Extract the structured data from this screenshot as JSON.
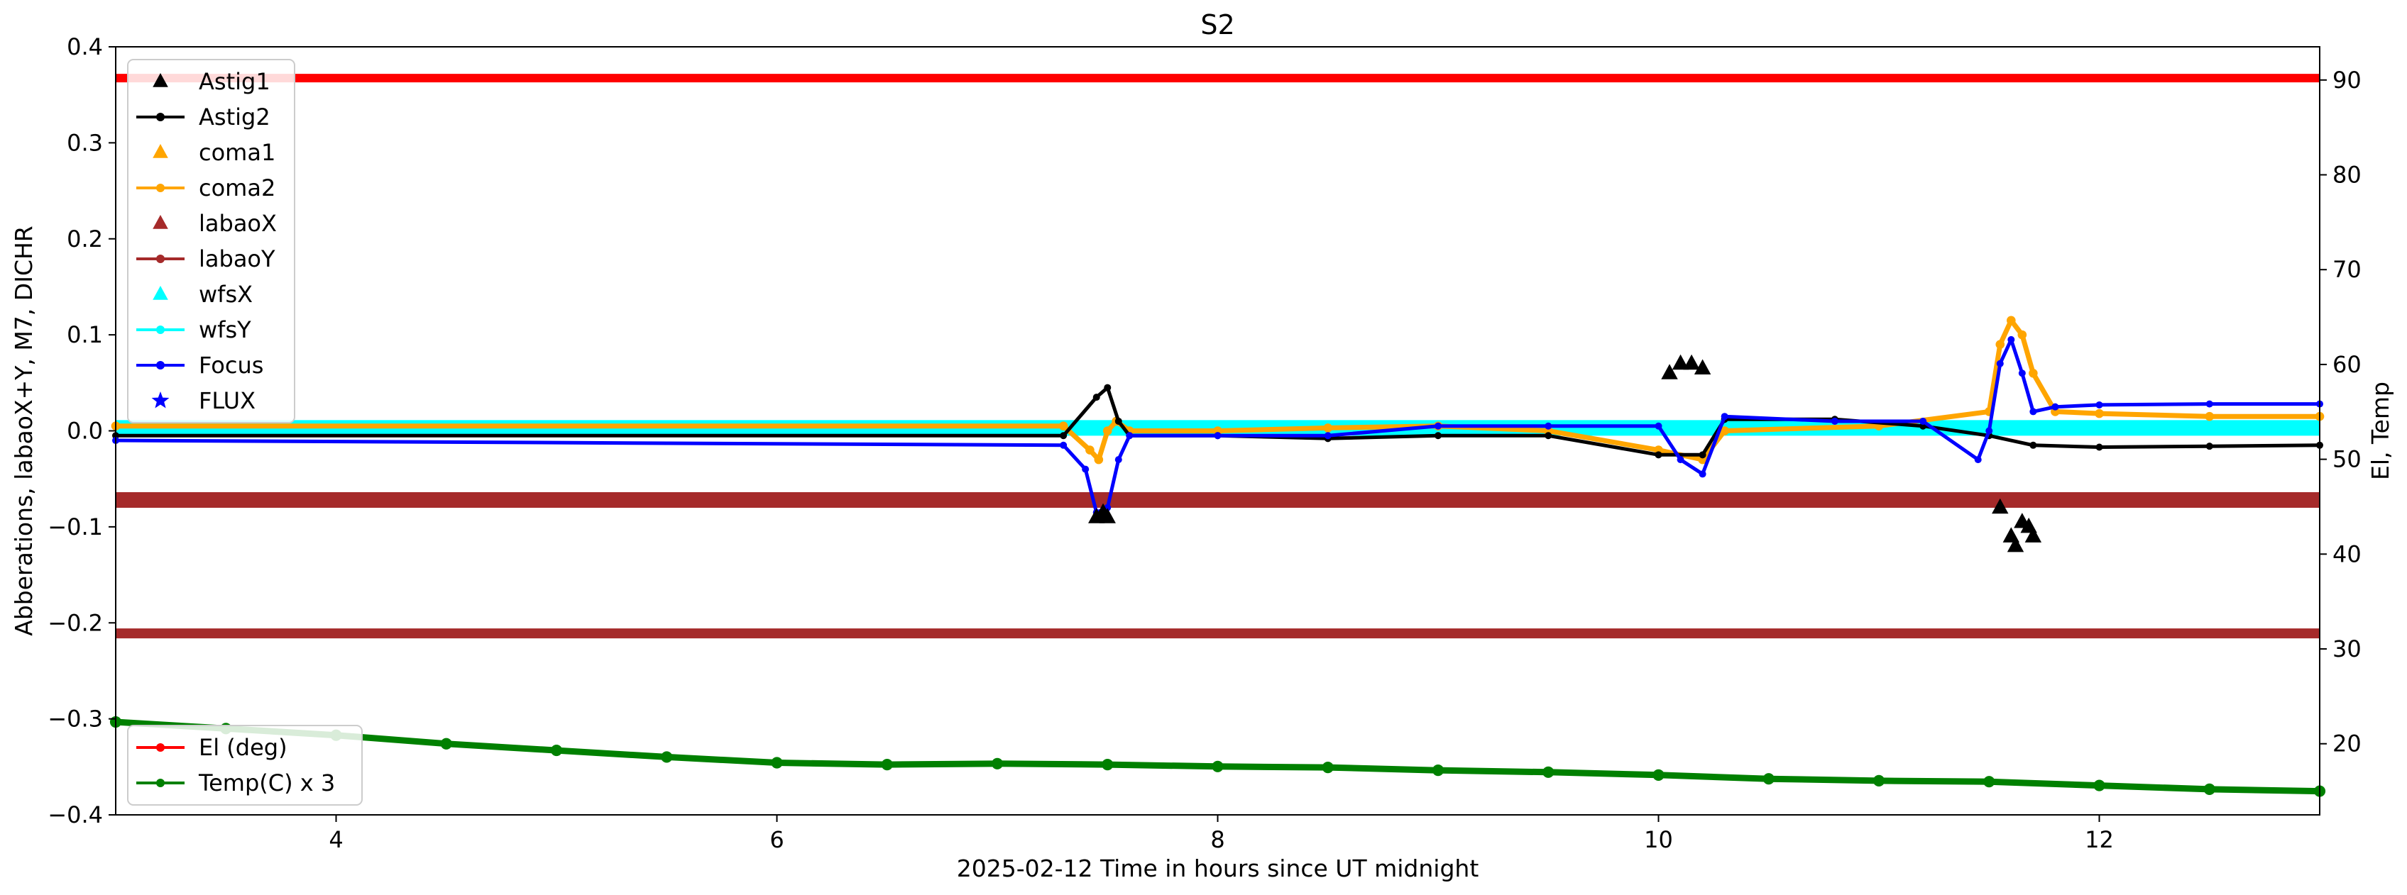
{
  "chart_data": {
    "type": "line",
    "title": "S2",
    "xlabel": "2025-02-12  Time in hours since UT midnight",
    "ylabel": "Abberations, labaoX+Y, M7, DICHR",
    "ylabel_right": "El, Temp",
    "xlim": [
      3,
      13
    ],
    "ylim": [
      -0.4,
      0.4
    ],
    "ylim_right": [
      12.5,
      93.5
    ],
    "x_ticks": [
      4,
      6,
      8,
      10,
      12
    ],
    "y_ticks": [
      -0.4,
      -0.3,
      -0.2,
      -0.1,
      0.0,
      0.1,
      0.2,
      0.3,
      0.4
    ],
    "y_tick_labels": [
      "−0.4",
      "−0.3",
      "−0.2",
      "−0.1",
      "0.0",
      "0.1",
      "0.2",
      "0.3",
      "0.4"
    ],
    "y_ticks_right": [
      20,
      30,
      40,
      50,
      60,
      70,
      80,
      90
    ],
    "grid": false,
    "legend_left_placement": "upper-left",
    "legend_right_placement": "lower-left",
    "legend_left": [
      {
        "name": "Astig1",
        "marker": "triangle",
        "line": false,
        "color": "#000000"
      },
      {
        "name": "Astig2",
        "marker": "dot",
        "line": true,
        "color": "#000000"
      },
      {
        "name": "coma1",
        "marker": "triangle",
        "line": false,
        "color": "#ffa500"
      },
      {
        "name": "coma2",
        "marker": "dot",
        "line": true,
        "color": "#ffa500"
      },
      {
        "name": "labaoX",
        "marker": "triangle",
        "line": false,
        "color": "#a52a2a"
      },
      {
        "name": "labaoY",
        "marker": "dot",
        "line": true,
        "color": "#a52a2a"
      },
      {
        "name": "wfsX",
        "marker": "triangle",
        "line": false,
        "color": "#00ffff"
      },
      {
        "name": "wfsY",
        "marker": "dot",
        "line": true,
        "color": "#00ffff"
      },
      {
        "name": "Focus",
        "marker": "dot",
        "line": true,
        "color": "#0000ff"
      },
      {
        "name": "FLUX",
        "marker": "star",
        "line": false,
        "color": "#0000ff"
      }
    ],
    "legend_right": [
      {
        "name": "El (deg)",
        "marker": "dot",
        "line": true,
        "color": "#ff0000"
      },
      {
        "name": "Temp(C) x 3",
        "marker": "dot",
        "line": true,
        "color": "#008000"
      }
    ],
    "series": [
      {
        "name": "El (deg)",
        "axis": "right",
        "color": "#ff0000",
        "x": [
          3.0,
          13.0
        ],
        "y": [
          90.2,
          90.2
        ]
      },
      {
        "name": "Temp(C) x 3",
        "axis": "right",
        "color": "#008000",
        "x": [
          3.0,
          3.5,
          4.0,
          4.5,
          5.0,
          5.5,
          6.0,
          6.5,
          7.0,
          7.5,
          8.0,
          8.5,
          9.0,
          9.5,
          10.0,
          10.5,
          11.0,
          11.5,
          12.0,
          12.5,
          13.0
        ],
        "y": [
          22.3,
          21.6,
          20.9,
          20.0,
          19.3,
          18.6,
          18.0,
          17.8,
          17.9,
          17.8,
          17.6,
          17.5,
          17.2,
          17.0,
          16.7,
          16.3,
          16.1,
          16.0,
          15.6,
          15.2,
          15.0
        ]
      },
      {
        "name": "labaoX",
        "axis": "left",
        "color": "#a52a2a",
        "x": [
          3.0,
          13.0
        ],
        "y": [
          -0.072,
          -0.072
        ]
      },
      {
        "name": "labaoY",
        "axis": "left",
        "color": "#a52a2a",
        "x": [
          3.0,
          13.0
        ],
        "y": [
          -0.211,
          -0.211
        ]
      },
      {
        "name": "wfsX",
        "axis": "left",
        "color": "#00ffff",
        "x": [
          3.0,
          13.0
        ],
        "y": [
          0.003,
          0.003
        ]
      },
      {
        "name": "wfsY",
        "axis": "left",
        "color": "#00ffff",
        "x": [
          3.0,
          13.0
        ],
        "y": [
          -0.001,
          -0.001
        ]
      },
      {
        "name": "coma2",
        "axis": "left",
        "color": "#ffa500",
        "x": [
          3.0,
          7.3,
          7.42,
          7.46,
          7.5,
          7.54,
          7.6,
          8.0,
          8.5,
          9.0,
          9.5,
          10.0,
          10.2,
          10.3,
          11.0,
          11.5,
          11.55,
          11.6,
          11.65,
          11.7,
          11.8,
          12.0,
          12.5,
          13.0
        ],
        "y": [
          0.005,
          0.005,
          -0.02,
          -0.03,
          0.0,
          0.01,
          0.0,
          0.0,
          0.003,
          0.005,
          0.0,
          -0.02,
          -0.03,
          0.0,
          0.005,
          0.02,
          0.09,
          0.115,
          0.1,
          0.06,
          0.02,
          0.018,
          0.015,
          0.015
        ]
      },
      {
        "name": "Astig2",
        "axis": "left",
        "color": "#000000",
        "x": [
          3.0,
          7.3,
          7.45,
          7.5,
          7.55,
          7.6,
          8.0,
          8.5,
          9.0,
          9.5,
          10.0,
          10.2,
          10.3,
          10.8,
          11.2,
          11.5,
          11.7,
          12.0,
          12.5,
          13.0
        ],
        "y": [
          -0.005,
          -0.005,
          0.035,
          0.045,
          0.01,
          -0.005,
          -0.005,
          -0.008,
          -0.005,
          -0.005,
          -0.025,
          -0.025,
          0.012,
          0.012,
          0.005,
          -0.005,
          -0.015,
          -0.017,
          -0.016,
          -0.015
        ]
      },
      {
        "name": "Focus",
        "axis": "left",
        "color": "#0000ff",
        "x": [
          3.0,
          7.3,
          7.4,
          7.45,
          7.5,
          7.55,
          7.6,
          8.0,
          8.5,
          9.0,
          9.5,
          10.0,
          10.1,
          10.2,
          10.3,
          10.8,
          11.2,
          11.45,
          11.5,
          11.55,
          11.6,
          11.65,
          11.7,
          11.8,
          12.0,
          12.5,
          13.0
        ],
        "y": [
          -0.01,
          -0.015,
          -0.04,
          -0.085,
          -0.08,
          -0.03,
          -0.005,
          -0.005,
          -0.005,
          0.005,
          0.005,
          0.005,
          -0.03,
          -0.045,
          0.015,
          0.01,
          0.01,
          -0.03,
          0.0,
          0.07,
          0.095,
          0.06,
          0.02,
          0.025,
          0.027,
          0.028,
          0.028
        ]
      },
      {
        "name": "Astig1",
        "axis": "left",
        "color": "#000000",
        "marker_only": true,
        "x": [
          7.45,
          7.48,
          7.5,
          10.05,
          10.1,
          10.15,
          10.2,
          11.55,
          11.6,
          11.62,
          11.65,
          11.68,
          11.7
        ],
        "y": [
          -0.09,
          -0.085,
          -0.09,
          0.06,
          0.07,
          0.07,
          0.065,
          -0.08,
          -0.11,
          -0.12,
          -0.095,
          -0.1,
          -0.11
        ]
      }
    ]
  }
}
